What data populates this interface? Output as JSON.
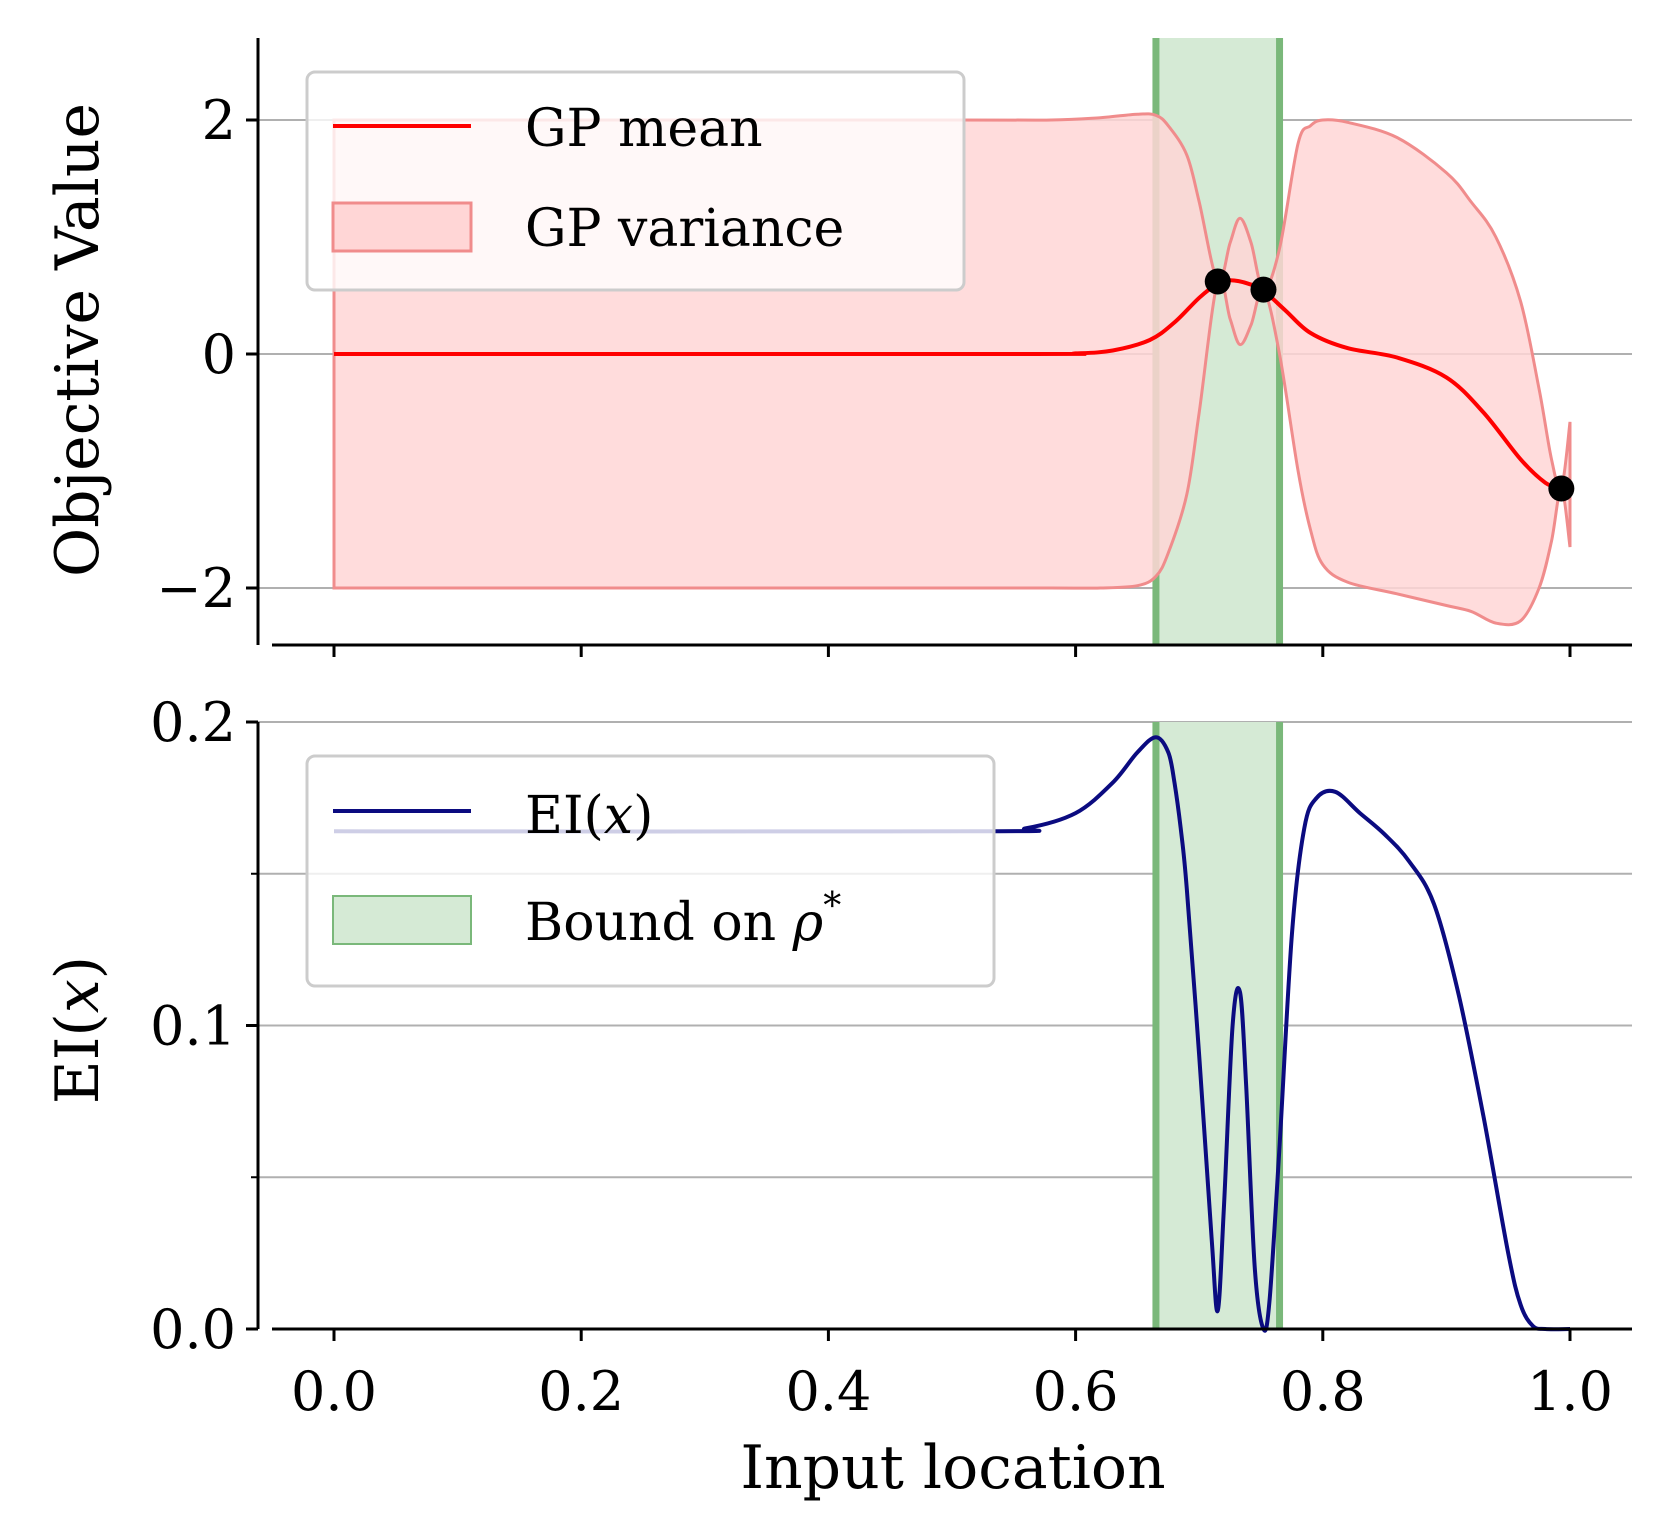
{
  "figure": {
    "xlabel": "Input location",
    "xticks": [
      "0.0",
      "0.2",
      "0.4",
      "0.6",
      "0.8",
      "1.0"
    ]
  },
  "colors": {
    "gp_mean": "#ff0000",
    "gp_variance_fill": "#ffd6d6",
    "gp_variance_edge": "#f08c8c",
    "ei": "#0b0b80",
    "bound_fill": "#d5ead5",
    "bound_edge": "#7ab87a",
    "observation": "#000000",
    "grid": "#b0b0b0"
  },
  "chart_data": [
    {
      "type": "line",
      "panel": "top",
      "ylabel": "Objective Value",
      "xlim": [
        -0.06,
        1.05
      ],
      "ylim": [
        -2.5,
        2.7
      ],
      "yticks": [
        "2",
        "0",
        "−2"
      ],
      "ytick_values": [
        2,
        0,
        -2
      ],
      "grid": "horizontal",
      "legend": {
        "position": "top-left",
        "entries": [
          {
            "label": "GP mean",
            "style": "line"
          },
          {
            "label": "GP variance",
            "style": "patch"
          }
        ]
      },
      "bound_interval": [
        0.665,
        0.765
      ],
      "observations": [
        {
          "x": 0.715,
          "y": 0.62
        },
        {
          "x": 0.752,
          "y": 0.55
        },
        {
          "x": 0.993,
          "y": -1.15
        }
      ],
      "series": [
        {
          "name": "GP mean",
          "x": [
            0,
            0.55,
            0.6,
            0.63,
            0.66,
            0.68,
            0.7,
            0.715,
            0.725,
            0.74,
            0.752,
            0.77,
            0.79,
            0.82,
            0.86,
            0.9,
            0.93,
            0.96,
            0.98,
            0.993
          ],
          "values": [
            0,
            0,
            0.005,
            0.03,
            0.12,
            0.27,
            0.48,
            0.6,
            0.63,
            0.6,
            0.54,
            0.37,
            0.18,
            0.05,
            -0.03,
            -0.2,
            -0.5,
            -0.9,
            -1.1,
            -1.15
          ]
        },
        {
          "name": "GP variance",
          "x": [
            0,
            0.5,
            0.58,
            0.62,
            0.65,
            0.665,
            0.675,
            0.69,
            0.7,
            0.715,
            0.725,
            0.733,
            0.742,
            0.752,
            0.765,
            0.78,
            0.79,
            0.8,
            0.82,
            0.86,
            0.9,
            0.92,
            0.94,
            0.96,
            0.975,
            0.985,
            0.993,
            1.0
          ],
          "upper": [
            2.0,
            2.0,
            2.0,
            2.02,
            2.05,
            2.04,
            1.95,
            1.7,
            1.3,
            0.62,
            0.95,
            1.16,
            0.95,
            0.55,
            0.9,
            1.8,
            1.95,
            2.0,
            1.98,
            1.85,
            1.55,
            1.3,
            1.0,
            0.45,
            -0.3,
            -0.9,
            -1.15,
            -0.58
          ],
          "lower": [
            -2.0,
            -2.0,
            -2.0,
            -2.0,
            -1.98,
            -1.9,
            -1.7,
            -1.2,
            -0.5,
            0.62,
            0.3,
            0.08,
            0.25,
            0.55,
            0.0,
            -1.0,
            -1.5,
            -1.8,
            -1.95,
            -2.05,
            -2.15,
            -2.2,
            -2.3,
            -2.28,
            -2.0,
            -1.6,
            -1.15,
            -1.65
          ]
        }
      ]
    },
    {
      "type": "line",
      "panel": "bottom",
      "ylabel": "EI(x)",
      "xlim": [
        -0.06,
        1.05
      ],
      "ylim": [
        0,
        0.2
      ],
      "yticks": [
        "0.2",
        "0.1",
        "0.0"
      ],
      "ytick_values": [
        0.2,
        0.1,
        0.0
      ],
      "minor_grid_values": [
        0.15,
        0.05
      ],
      "grid": "horizontal",
      "legend": {
        "position": "top-left",
        "entries": [
          {
            "label": "EI(x)",
            "style": "line"
          },
          {
            "label": "Bound on ρ*",
            "style": "patch"
          }
        ]
      },
      "bound_interval": [
        0.665,
        0.765
      ],
      "series": [
        {
          "name": "EI(x)",
          "x": [
            0,
            0.52,
            0.56,
            0.6,
            0.63,
            0.65,
            0.665,
            0.675,
            0.68,
            0.685,
            0.69,
            0.7,
            0.71,
            0.715,
            0.72,
            0.727,
            0.733,
            0.738,
            0.745,
            0.752,
            0.757,
            0.765,
            0.775,
            0.785,
            0.795,
            0.81,
            0.83,
            0.85,
            0.87,
            0.89,
            0.91,
            0.93,
            0.95,
            0.96,
            0.97,
            0.98,
            1.0
          ],
          "values": [
            0.164,
            0.164,
            0.165,
            0.17,
            0.18,
            0.19,
            0.195,
            0.19,
            0.18,
            0.165,
            0.145,
            0.09,
            0.03,
            0.006,
            0.04,
            0.1,
            0.111,
            0.08,
            0.02,
            0.0,
            0.01,
            0.06,
            0.13,
            0.165,
            0.175,
            0.177,
            0.17,
            0.163,
            0.154,
            0.14,
            0.11,
            0.07,
            0.025,
            0.008,
            0.001,
            0.0,
            0.0
          ]
        }
      ]
    }
  ]
}
